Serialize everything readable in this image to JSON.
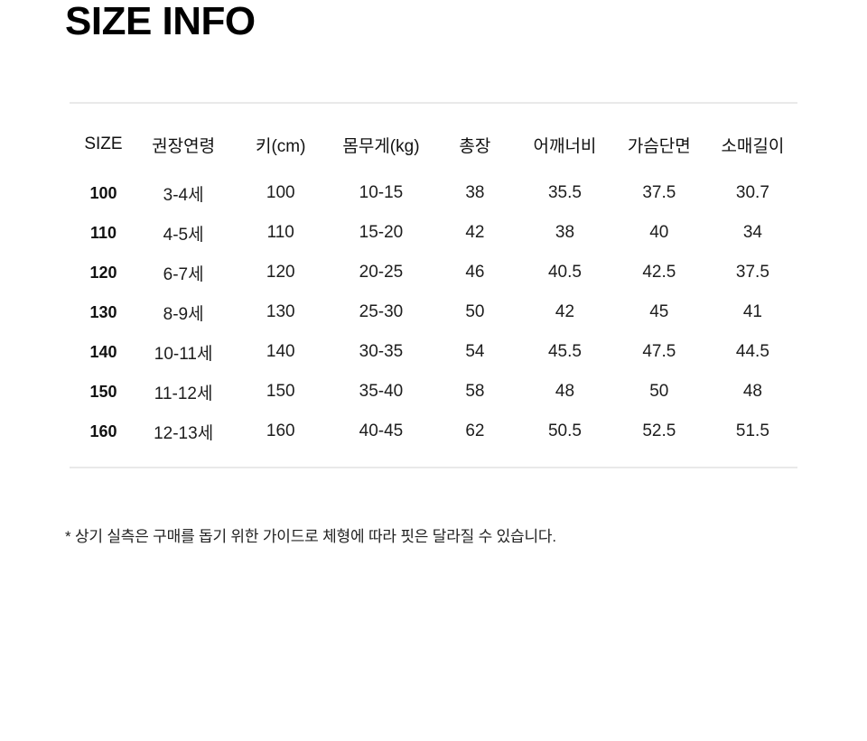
{
  "page": {
    "title": "SIZE INFO"
  },
  "size_table": {
    "columns": [
      "SIZE",
      "권장연령",
      "키(cm)",
      "몸무게(kg)",
      "총장",
      "어깨너비",
      "가슴단면",
      "소매길이"
    ],
    "rows": [
      [
        "100",
        "3-4세",
        "100",
        "10-15",
        "38",
        "35.5",
        "37.5",
        "30.7"
      ],
      [
        "110",
        "4-5세",
        "110",
        "15-20",
        "42",
        "38",
        "40",
        "34"
      ],
      [
        "120",
        "6-7세",
        "120",
        "20-25",
        "46",
        "40.5",
        "42.5",
        "37.5"
      ],
      [
        "130",
        "8-9세",
        "130",
        "25-30",
        "50",
        "42",
        "45",
        "41"
      ],
      [
        "140",
        "10-11세",
        "140",
        "30-35",
        "54",
        "45.5",
        "47.5",
        "44.5"
      ],
      [
        "150",
        "11-12세",
        "150",
        "35-40",
        "58",
        "48",
        "50",
        "48"
      ],
      [
        "160",
        "12-13세",
        "160",
        "40-45",
        "62",
        "50.5",
        "52.5",
        "51.5"
      ]
    ]
  },
  "footnote": "* 상기 실측은 구매를 돕기 위한 가이드로 체형에 따라 핏은 달라질 수 있습니다.",
  "colors": {
    "background": "#ffffff",
    "text": "#111111",
    "divider": "#e9e9e9"
  }
}
